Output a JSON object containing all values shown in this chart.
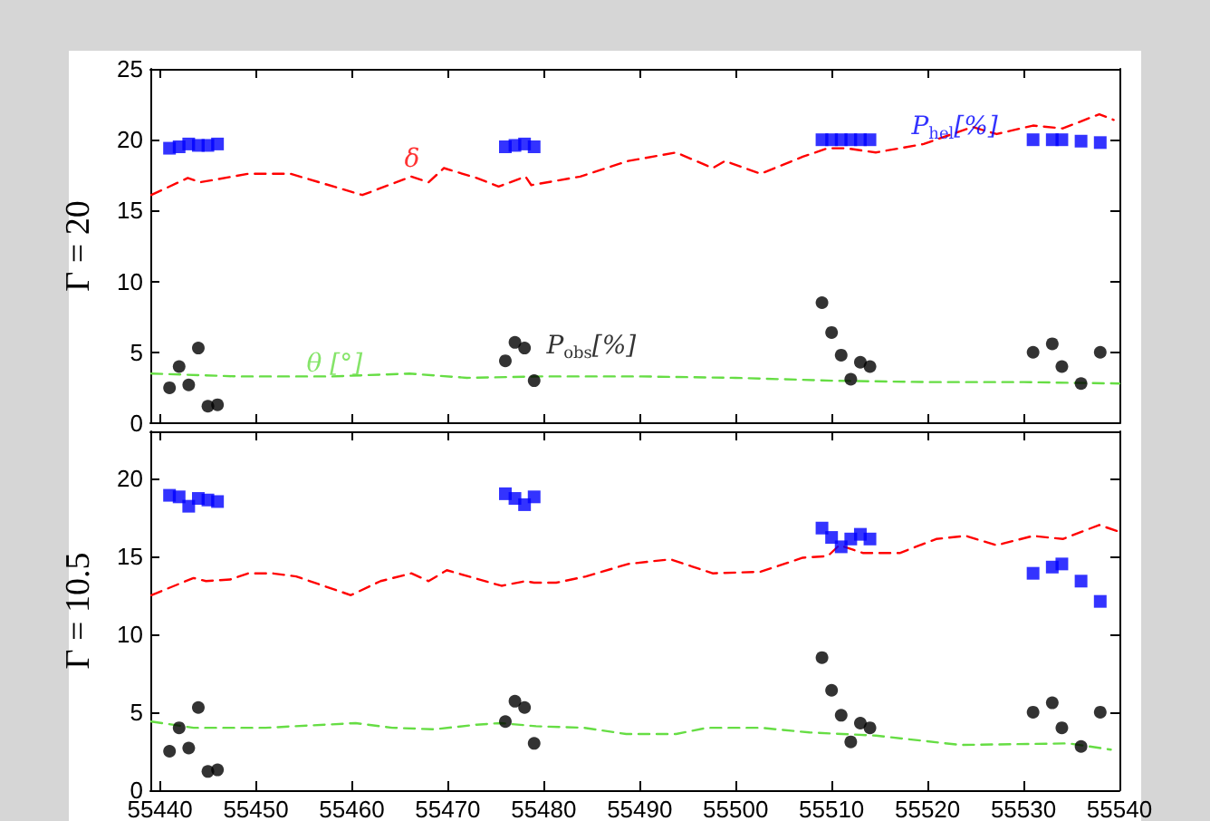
{
  "chart_data": [
    {
      "type": "scatter",
      "ylabel": "Γ = 20",
      "xlim": [
        55439,
        55540
      ],
      "xticks": [
        55440,
        55450,
        55460,
        55470,
        55480,
        55490,
        55500,
        55510,
        55520,
        55530,
        55540
      ],
      "ylim": [
        0,
        25
      ],
      "yticks": [
        0,
        5,
        10,
        15,
        20,
        25
      ],
      "tick_labels": "y",
      "grid": false,
      "legend": false,
      "series": [
        {
          "name": "P$_{hel}$[%]",
          "marker": "square",
          "color": "#0000ff",
          "x": [
            55441,
            55442,
            55443,
            55444,
            55445,
            55446,
            55476,
            55477,
            55478,
            55479,
            55509,
            55510,
            55511,
            55512,
            55513,
            55514,
            55531,
            55533,
            55534,
            55536,
            55538
          ],
          "values": [
            19.4,
            19.5,
            19.7,
            19.6,
            19.6,
            19.7,
            19.5,
            19.6,
            19.7,
            19.5,
            20.0,
            20.0,
            20.0,
            20.0,
            20.0,
            20.0,
            20.0,
            20.0,
            20.0,
            19.9,
            19.8
          ]
        },
        {
          "name": "δ",
          "type": "line",
          "line_style": "dashed",
          "color": "#ff0000",
          "x": [
            55439.1,
            55442.9,
            55444.2,
            55449.2,
            55453.6,
            55461.1,
            55466.2,
            55468,
            55469.6,
            55473,
            55475.3,
            55478.1,
            55478.7,
            55483.8,
            55488.8,
            55493.8,
            55497.6,
            55498.9,
            55502.6,
            55507,
            55509.6,
            55511.5,
            55514.6,
            55519.6,
            55524.7,
            55527.2,
            55531,
            55534.1,
            55537.9,
            55539.4
          ],
          "values": [
            16.1,
            17.3,
            17.0,
            17.6,
            17.6,
            16.1,
            17.4,
            17.0,
            18.0,
            17.3,
            16.7,
            17.4,
            16.8,
            17.4,
            18.5,
            19.1,
            18.0,
            18.5,
            17.6,
            18.8,
            19.4,
            19.4,
            19.1,
            19.7,
            20.9,
            20.4,
            21.0,
            20.8,
            21.8,
            21.4
          ]
        },
        {
          "name": "θ [°]",
          "type": "line",
          "line_style": "dashed",
          "color": "#66dd44",
          "x": [
            55439.1,
            55448,
            55458,
            55466,
            55472,
            55480,
            55490,
            55500,
            55510,
            55520,
            55530,
            55540
          ],
          "values": [
            3.5,
            3.3,
            3.3,
            3.5,
            3.2,
            3.3,
            3.3,
            3.2,
            3.0,
            2.9,
            2.9,
            2.8
          ]
        },
        {
          "name": "P$_{obs}$[%]",
          "marker": "circle",
          "color": "#000000",
          "x": [
            55441,
            55442,
            55443,
            55444,
            55445,
            55446,
            55476,
            55477,
            55478,
            55479,
            55509,
            55510,
            55511,
            55512,
            55513,
            55514,
            55531,
            55533,
            55534,
            55536,
            55538
          ],
          "values": [
            2.5,
            4.0,
            2.7,
            5.3,
            1.2,
            1.3,
            4.4,
            5.7,
            5.3,
            3.0,
            8.5,
            6.4,
            4.8,
            3.1,
            4.3,
            4.0,
            5.0,
            5.6,
            4.0,
            2.8,
            5.0
          ]
        }
      ]
    },
    {
      "type": "scatter",
      "ylabel": "Γ = 10.5",
      "xlim": [
        55439,
        55540
      ],
      "xticks": [
        55440,
        55450,
        55460,
        55470,
        55480,
        55490,
        55500,
        55510,
        55520,
        55530,
        55540
      ],
      "ylim": [
        0,
        23
      ],
      "yticks": [
        0,
        5,
        10,
        15,
        20
      ],
      "grid": false,
      "legend": false,
      "series": [
        {
          "marker": "square",
          "color": "#0000ff",
          "x": [
            55441,
            55442,
            55443,
            55444,
            55445,
            55446,
            55476,
            55477,
            55478,
            55479,
            55509,
            55510,
            55511,
            55512,
            55513,
            55514,
            55531,
            55533,
            55534,
            55536,
            55538
          ],
          "values": [
            18.9,
            18.8,
            18.2,
            18.7,
            18.6,
            18.5,
            19.0,
            18.7,
            18.3,
            18.8,
            16.8,
            16.2,
            15.6,
            16.1,
            16.4,
            16.1,
            13.9,
            14.3,
            14.5,
            13.4,
            12.1
          ]
        },
        {
          "type": "line",
          "line_style": "dashed",
          "color": "#ff0000",
          "x": [
            55439.1,
            55443.5,
            55444.8,
            55447.3,
            55449.2,
            55451.7,
            55454.2,
            55459.9,
            55463,
            55466.2,
            55468,
            55469.9,
            55475.6,
            55478.1,
            55479,
            55481.3,
            55484.4,
            55488.8,
            55493.2,
            55497.6,
            55502.6,
            55507,
            55509.6,
            55510.8,
            55513.3,
            55517.1,
            55520.9,
            55524,
            55527.2,
            55531,
            55534.1,
            55537.9,
            55539.8
          ],
          "values": [
            12.5,
            13.6,
            13.4,
            13.5,
            13.9,
            13.9,
            13.7,
            12.5,
            13.4,
            13.9,
            13.4,
            14.1,
            13.1,
            13.4,
            13.3,
            13.3,
            13.7,
            14.5,
            14.8,
            13.9,
            14.0,
            14.9,
            15.0,
            15.7,
            15.2,
            15.2,
            16.1,
            16.3,
            15.7,
            16.3,
            16.1,
            17.0,
            16.6
          ]
        },
        {
          "type": "line",
          "line_style": "dashed",
          "color": "#66dd44",
          "x": [
            55439.1,
            55443.5,
            55451,
            55460.4,
            55464.2,
            55468.6,
            55473,
            55475.5,
            55479.2,
            55484.2,
            55488.6,
            55493.8,
            55497,
            55502.6,
            55507.7,
            55514.6,
            55523.4,
            55534.7,
            55539.1
          ],
          "values": [
            4.4,
            4.0,
            4.0,
            4.3,
            4.0,
            3.9,
            4.2,
            4.3,
            4.1,
            4.0,
            3.6,
            3.6,
            4.0,
            4.0,
            3.7,
            3.5,
            2.9,
            3.0,
            2.6
          ]
        },
        {
          "marker": "circle",
          "color": "#000000",
          "x": [
            55441,
            55442,
            55443,
            55444,
            55445,
            55446,
            55476,
            55477,
            55478,
            55479,
            55509,
            55510,
            55511,
            55512,
            55513,
            55514,
            55531,
            55533,
            55534,
            55536,
            55538
          ],
          "values": [
            2.5,
            4.0,
            2.7,
            5.3,
            1.2,
            1.3,
            4.4,
            5.7,
            5.3,
            3.0,
            8.5,
            6.4,
            4.8,
            3.1,
            4.3,
            4.0,
            5.0,
            5.6,
            4.0,
            2.8,
            5.0
          ]
        }
      ]
    }
  ]
}
